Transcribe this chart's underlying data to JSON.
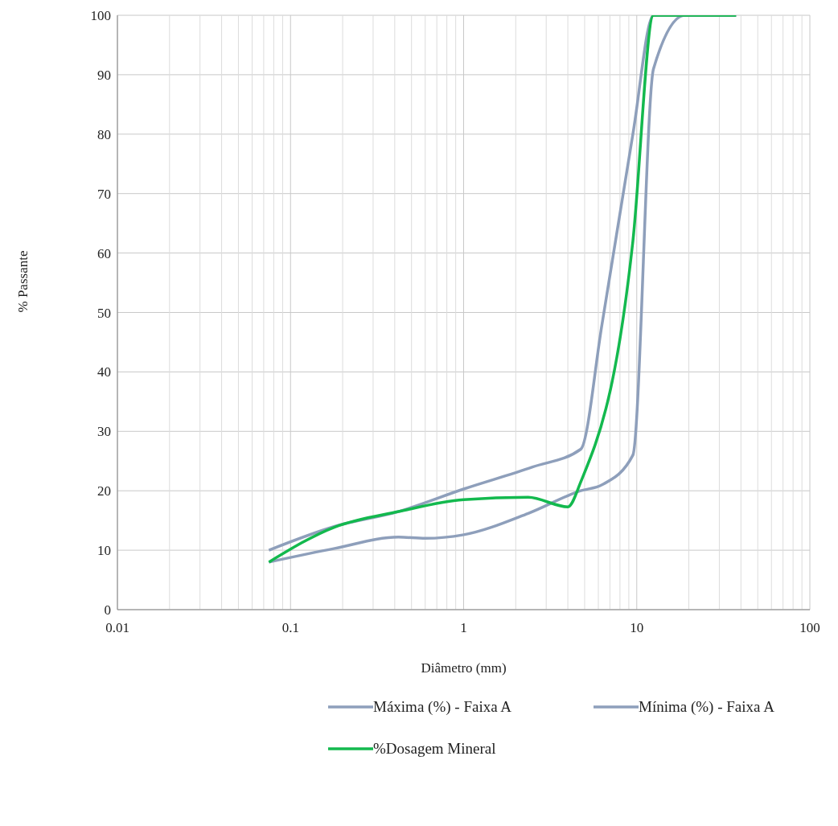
{
  "chart_data": {
    "type": "line",
    "xlabel": "Diâmetro (mm)",
    "ylabel": "% Passante",
    "log": "x",
    "xlim": [
      0.01,
      100
    ],
    "xticks": [
      0.01,
      0.1,
      1,
      10,
      100
    ],
    "ylim": [
      0,
      100
    ],
    "yticks": [
      0,
      10,
      20,
      30,
      40,
      50,
      60,
      70,
      80,
      90,
      100
    ],
    "grid": true,
    "legend": "bottom",
    "marker": "none",
    "line_style": "solid",
    "series": [
      {
        "name": "Máxima (%) - Faixa A",
        "color": "#8e9fbb",
        "x": [
          0.075,
          0.18,
          0.42,
          1,
          2.5,
          4.75,
          6.3,
          9.5,
          12.5,
          19,
          37.5
        ],
        "values": [
          10,
          14,
          16.5,
          20.3,
          24,
          27,
          48,
          80,
          100,
          100,
          100
        ]
      },
      {
        "name": "Mínima (%) - Faixa A",
        "color": "#8e9fbb",
        "x": [
          0.075,
          0.18,
          0.42,
          0.6,
          1,
          2.36,
          4.75,
          6.3,
          9.5,
          12.5,
          19,
          37.5
        ],
        "values": [
          8,
          10.3,
          12.2,
          12,
          12.6,
          16.2,
          20,
          21,
          26,
          91,
          100,
          100
        ]
      },
      {
        "name": "%Dosagem Mineral",
        "color": "#13b94e",
        "x": [
          0.075,
          0.18,
          0.42,
          1,
          2.36,
          4,
          4.75,
          9.5,
          12.5,
          19,
          37.5
        ],
        "values": [
          8,
          13.9,
          16.5,
          18.5,
          18.9,
          17.3,
          21.5,
          62,
          100,
          100,
          100
        ]
      }
    ]
  }
}
